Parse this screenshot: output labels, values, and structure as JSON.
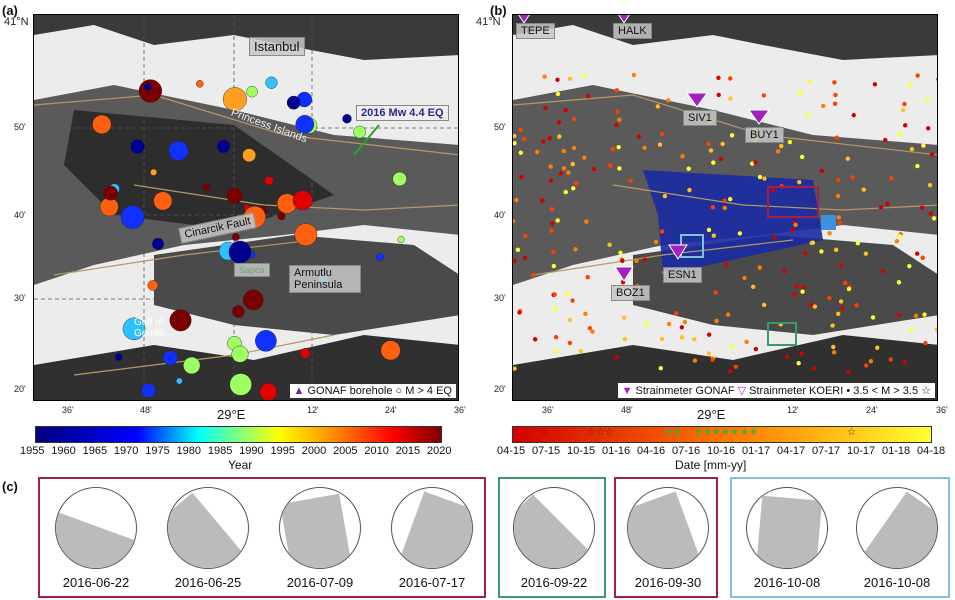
{
  "panel_a": {
    "label": "(a)",
    "lat_ticks": [
      "41°N",
      "50'",
      "40'",
      "30'",
      "20'"
    ],
    "lon_ticks": [
      "36'",
      "48'",
      "29°E",
      "12'",
      "24'",
      "36'"
    ],
    "place_labels": {
      "istanbul": "Istanbul",
      "princess": "Princess Islands",
      "eq": "2016 Mw 4.4 EQ",
      "cinarcik": "Cinarcik Fault",
      "armutlu": "Armutlu Peninsula",
      "gemlik": "Gulf of Gemlik",
      "sapanca": "Sapca"
    },
    "legend": {
      "borehole": "GONAF borehole",
      "eq": "M > 4 EQ"
    },
    "colorbar": {
      "title": "Year",
      "ticks": [
        "1955",
        "1960",
        "1965",
        "1970",
        "1975",
        "1980",
        "1985",
        "1990",
        "1995",
        "2000",
        "2005",
        "2010",
        "2015",
        "2020"
      ],
      "colors": [
        "#00007f",
        "#0000ff",
        "#00ffff",
        "#ffff00",
        "#ff7f00",
        "#ff0000",
        "#7f0000"
      ]
    }
  },
  "panel_b": {
    "label": "(b)",
    "lat_ticks": [
      "41°N",
      "50'",
      "40'",
      "30'",
      "20'"
    ],
    "lon_ticks": [
      "36'",
      "48'",
      "29°E",
      "12'",
      "24'",
      "36'"
    ],
    "stations": {
      "tepe": "TEPE",
      "halk": "HALK",
      "siv1": "SIV1",
      "buy1": "BUY1",
      "esn1": "ESN1",
      "boz1": "BOZ1"
    },
    "legend": {
      "gonaf": "Strainmeter GONAF",
      "koeri": "Strainmeter KOERI",
      "small": "3.5 < M > 3.5"
    },
    "colorbar": {
      "title": "Date [mm-yy]",
      "ticks": [
        "04-15",
        "07-15",
        "10-15",
        "01-16",
        "04-16",
        "07-16",
        "10-16",
        "01-17",
        "04-17",
        "07-17",
        "10-17",
        "01-18",
        "04-18"
      ],
      "colors": [
        "#d40000",
        "#ff8000",
        "#ffff30"
      ]
    }
  },
  "panel_c": {
    "label": "(c)",
    "groups": [
      {
        "color": "#a0204a",
        "dates": [
          "2016-06-22",
          "2016-06-25",
          "2016-07-09",
          "2016-07-17"
        ]
      },
      {
        "color": "#3a9a6a",
        "dates": [
          "2016-09-22"
        ]
      },
      {
        "color": "#a0204a",
        "dates": [
          "2016-09-30"
        ]
      },
      {
        "color": "#80c0e0",
        "dates": [
          "2016-10-08",
          "2016-10-08"
        ]
      }
    ]
  }
}
